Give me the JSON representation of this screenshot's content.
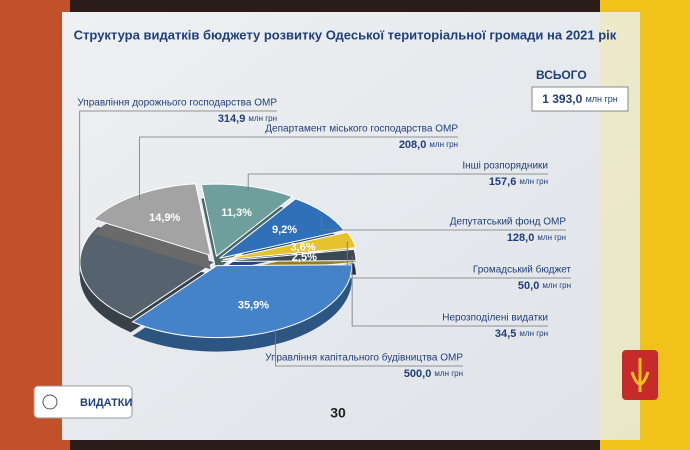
{
  "chart_data": {
    "type": "pie",
    "title": "Структура видатків бюджету розвитку Одеської територіальної громади на 2021 рік",
    "total_label": "ВСЬОГО",
    "total": "1 393,0",
    "unit": "млн грн",
    "categories": [
      "Управління дорожнього господарства ОМР",
      "Департамент міського господарства ОМР",
      "Інші розпорядники",
      "Депутатський фонд ОМР",
      "Громадський бюджет",
      "Нерозподілені видатки",
      "Управління капітального будівництва ОМР"
    ],
    "values": [
      22.6,
      14.9,
      11.3,
      9.2,
      3.6,
      2.5,
      35.9
    ],
    "value_labels": [
      null,
      "14,9%",
      "11,3%",
      "9,2%",
      "3,6%",
      "2,5%",
      "35,9%"
    ],
    "amounts": [
      "314,9",
      "208,0",
      "157,6",
      "128,0",
      "50,0",
      "34,5",
      "500,0"
    ],
    "colors": [
      "#56636e",
      "#a3a3a3",
      "#6e9f9c",
      "#2f70b8",
      "#e6c22c",
      "#3b4954",
      "#4483c8"
    ],
    "button": "ВИДАТКИ",
    "page_number": "30"
  }
}
